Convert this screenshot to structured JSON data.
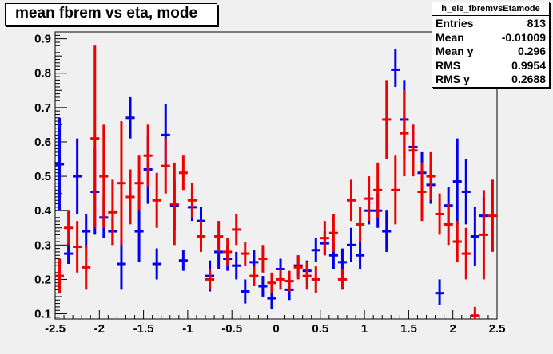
{
  "title": "mean fbrem vs eta, mode",
  "stats": {
    "name": "h_ele_fbremvsEtamode",
    "rows": [
      {
        "key": "Entries",
        "value": "813"
      },
      {
        "key": "Mean",
        "value": "-0.01009"
      },
      {
        "key": "Mean y",
        "value": "0.296"
      },
      {
        "key": "RMS",
        "value": "0.9954"
      },
      {
        "key": "RMS y",
        "value": "0.2688"
      }
    ]
  },
  "colors": {
    "blue": "#0000ee",
    "red": "#ee0000",
    "frame": "#f0f0f0"
  },
  "chart_data": {
    "type": "scatter",
    "xlim": [
      -2.5,
      2.5
    ],
    "ylim": [
      0.085,
      0.92
    ],
    "xticks": [
      "-2.5",
      "-2",
      "-1.5",
      "-1",
      "-0.5",
      "0",
      "0.5",
      "1",
      "1.5",
      "2",
      "2.5"
    ],
    "yticks": [
      "0.1",
      "0.2",
      "0.3",
      "0.4",
      "0.5",
      "0.6",
      "0.7",
      "0.8",
      "0.9"
    ],
    "xerr": 0.05,
    "series": [
      {
        "color": "blue",
        "points": [
          [
            -2.45,
            0.535,
            0.4,
            0.67
          ],
          [
            -2.35,
            0.275,
            0.245,
            0.305
          ],
          [
            -2.25,
            0.5,
            0.39,
            0.61
          ],
          [
            -2.15,
            0.34,
            0.29,
            0.39
          ],
          [
            -2.05,
            0.455,
            0.33,
            0.58
          ],
          [
            -1.95,
            0.38,
            0.32,
            0.44
          ],
          [
            -1.85,
            0.34,
            0.3,
            0.38
          ],
          [
            -1.75,
            0.245,
            0.17,
            0.32
          ],
          [
            -1.65,
            0.67,
            0.61,
            0.73
          ],
          [
            -1.55,
            0.34,
            0.25,
            0.43
          ],
          [
            -1.45,
            0.52,
            0.42,
            0.62
          ],
          [
            -1.35,
            0.245,
            0.2,
            0.29
          ],
          [
            -1.25,
            0.62,
            0.53,
            0.71
          ],
          [
            -1.15,
            0.415,
            0.34,
            0.49
          ],
          [
            -1.05,
            0.255,
            0.225,
            0.285
          ],
          [
            -0.95,
            0.41,
            0.37,
            0.45
          ],
          [
            -0.85,
            0.37,
            0.33,
            0.41
          ],
          [
            -0.75,
            0.21,
            0.165,
            0.255
          ],
          [
            -0.65,
            0.28,
            0.23,
            0.33
          ],
          [
            -0.55,
            0.26,
            0.225,
            0.295
          ],
          [
            -0.45,
            0.24,
            0.2,
            0.28
          ],
          [
            -0.35,
            0.165,
            0.13,
            0.2
          ],
          [
            -0.25,
            0.25,
            0.215,
            0.285
          ],
          [
            -0.15,
            0.18,
            0.15,
            0.21
          ],
          [
            -0.05,
            0.145,
            0.115,
            0.175
          ],
          [
            0.05,
            0.23,
            0.2,
            0.26
          ],
          [
            0.15,
            0.17,
            0.14,
            0.2
          ],
          [
            0.25,
            0.24,
            0.21,
            0.27
          ],
          [
            0.35,
            0.225,
            0.195,
            0.255
          ],
          [
            0.45,
            0.285,
            0.25,
            0.32
          ],
          [
            0.55,
            0.305,
            0.27,
            0.34
          ],
          [
            0.65,
            0.27,
            0.23,
            0.31
          ],
          [
            0.75,
            0.25,
            0.21,
            0.29
          ],
          [
            0.85,
            0.3,
            0.25,
            0.35
          ],
          [
            0.95,
            0.27,
            0.23,
            0.31
          ],
          [
            1.05,
            0.4,
            0.36,
            0.44
          ],
          [
            1.15,
            0.4,
            0.35,
            0.45
          ],
          [
            1.25,
            0.34,
            0.28,
            0.4
          ],
          [
            1.35,
            0.81,
            0.76,
            0.87
          ],
          [
            1.45,
            0.665,
            0.55,
            0.78
          ],
          [
            1.55,
            0.585,
            0.52,
            0.65
          ],
          [
            1.65,
            0.51,
            0.45,
            0.57
          ],
          [
            1.75,
            0.475,
            0.42,
            0.53
          ],
          [
            1.85,
            0.16,
            0.125,
            0.2
          ],
          [
            1.95,
            0.415,
            0.36,
            0.47
          ],
          [
            2.05,
            0.485,
            0.36,
            0.61
          ],
          [
            2.15,
            0.455,
            0.36,
            0.55
          ],
          [
            2.25,
            0.325,
            0.24,
            0.41
          ],
          [
            2.35,
            0.385,
            0.33,
            0.44
          ]
        ]
      },
      {
        "color": "red",
        "points": [
          [
            -2.45,
            0.21,
            0.16,
            0.26
          ],
          [
            -2.35,
            0.35,
            0.3,
            0.4
          ],
          [
            -2.25,
            0.295,
            0.22,
            0.37
          ],
          [
            -2.15,
            0.235,
            0.17,
            0.3
          ],
          [
            -2.05,
            0.61,
            0.35,
            0.88
          ],
          [
            -1.95,
            0.5,
            0.35,
            0.65
          ],
          [
            -1.85,
            0.395,
            0.3,
            0.49
          ],
          [
            -1.75,
            0.48,
            0.3,
            0.66
          ],
          [
            -1.65,
            0.44,
            0.36,
            0.52
          ],
          [
            -1.55,
            0.48,
            0.4,
            0.56
          ],
          [
            -1.45,
            0.56,
            0.47,
            0.65
          ],
          [
            -1.35,
            0.43,
            0.35,
            0.51
          ],
          [
            -1.25,
            0.53,
            0.45,
            0.61
          ],
          [
            -1.15,
            0.42,
            0.3,
            0.54
          ],
          [
            -1.05,
            0.51,
            0.46,
            0.56
          ],
          [
            -0.95,
            0.43,
            0.38,
            0.48
          ],
          [
            -0.85,
            0.325,
            0.28,
            0.37
          ],
          [
            -0.75,
            0.2,
            0.17,
            0.23
          ],
          [
            -0.65,
            0.325,
            0.28,
            0.37
          ],
          [
            -0.55,
            0.28,
            0.24,
            0.32
          ],
          [
            -0.45,
            0.345,
            0.3,
            0.39
          ],
          [
            -0.35,
            0.275,
            0.24,
            0.31
          ],
          [
            -0.25,
            0.21,
            0.18,
            0.24
          ],
          [
            -0.15,
            0.26,
            0.22,
            0.3
          ],
          [
            -0.05,
            0.19,
            0.16,
            0.22
          ],
          [
            0.05,
            0.2,
            0.17,
            0.23
          ],
          [
            0.15,
            0.195,
            0.165,
            0.225
          ],
          [
            0.25,
            0.235,
            0.2,
            0.27
          ],
          [
            0.35,
            0.21,
            0.17,
            0.25
          ],
          [
            0.45,
            0.2,
            0.16,
            0.24
          ],
          [
            0.55,
            0.32,
            0.27,
            0.37
          ],
          [
            0.65,
            0.335,
            0.28,
            0.39
          ],
          [
            0.75,
            0.2,
            0.17,
            0.23
          ],
          [
            0.85,
            0.43,
            0.37,
            0.49
          ],
          [
            0.95,
            0.36,
            0.31,
            0.41
          ],
          [
            1.05,
            0.435,
            0.37,
            0.5
          ],
          [
            1.15,
            0.46,
            0.38,
            0.54
          ],
          [
            1.25,
            0.665,
            0.55,
            0.78
          ],
          [
            1.35,
            0.46,
            0.36,
            0.56
          ],
          [
            1.45,
            0.625,
            0.5,
            0.75
          ],
          [
            1.55,
            0.575,
            0.5,
            0.65
          ],
          [
            1.65,
            0.455,
            0.37,
            0.54
          ],
          [
            1.75,
            0.5,
            0.43,
            0.57
          ],
          [
            1.85,
            0.39,
            0.33,
            0.45
          ],
          [
            1.95,
            0.36,
            0.3,
            0.42
          ],
          [
            2.05,
            0.31,
            0.25,
            0.37
          ],
          [
            2.15,
            0.275,
            0.2,
            0.35
          ],
          [
            2.25,
            0.095,
            0.07,
            0.12
          ],
          [
            2.35,
            0.33,
            0.2,
            0.46
          ],
          [
            2.45,
            0.385,
            0.28,
            0.49
          ]
        ]
      }
    ]
  }
}
